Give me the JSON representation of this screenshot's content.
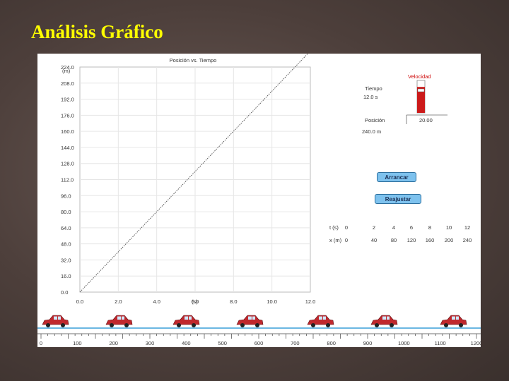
{
  "slide": {
    "title": "Análisis Gráfico"
  },
  "applet": {
    "graph": {
      "title": "Posición vs. Tiempo",
      "y_unit": "(m)",
      "x_unit": "(s)",
      "y_ticks": [
        "224.0",
        "208.0",
        "192.0",
        "176.0",
        "160.0",
        "144.0",
        "128.0",
        "112.0",
        "96.0",
        "80.0",
        "64.0",
        "48.0",
        "32.0",
        "16.0",
        "0.0"
      ],
      "x_ticks": [
        "0.0",
        "2.0",
        "4.0",
        "6.0",
        "8.0",
        "10.0",
        "12.0"
      ]
    },
    "panel": {
      "velocity_label": "Velocidad",
      "time_label": "Tiempo",
      "time_value": "12.0 s",
      "position_label": "Posición",
      "position_value": "240.0 m",
      "velocity_value": "20.00",
      "velocity_level": 0.8
    },
    "buttons": {
      "start": "Arrancar",
      "reset": "Reajustar"
    },
    "table": {
      "t_header": "t (s)",
      "x_header": "x (m)",
      "t_values": [
        "0",
        "2",
        "4",
        "6",
        "8",
        "10",
        "12"
      ],
      "x_values": [
        "0",
        "40",
        "80",
        "120",
        "160",
        "200",
        "240"
      ]
    },
    "ruler_labels": [
      "0",
      "100",
      "200",
      "300",
      "400",
      "500",
      "600",
      "700",
      "800",
      "900",
      "1000",
      "1100",
      "1200"
    ],
    "car_color": "#c0282d"
  },
  "chart_data": {
    "type": "line",
    "title": "Posición vs. Tiempo",
    "xlabel": "(s)",
    "ylabel": "(m)",
    "xlim": [
      0,
      12
    ],
    "ylim": [
      0,
      224
    ],
    "series": [
      {
        "x": [
          0,
          2,
          4,
          6,
          8,
          10,
          12
        ],
        "y": [
          0,
          40,
          80,
          120,
          160,
          200,
          240
        ]
      }
    ]
  }
}
